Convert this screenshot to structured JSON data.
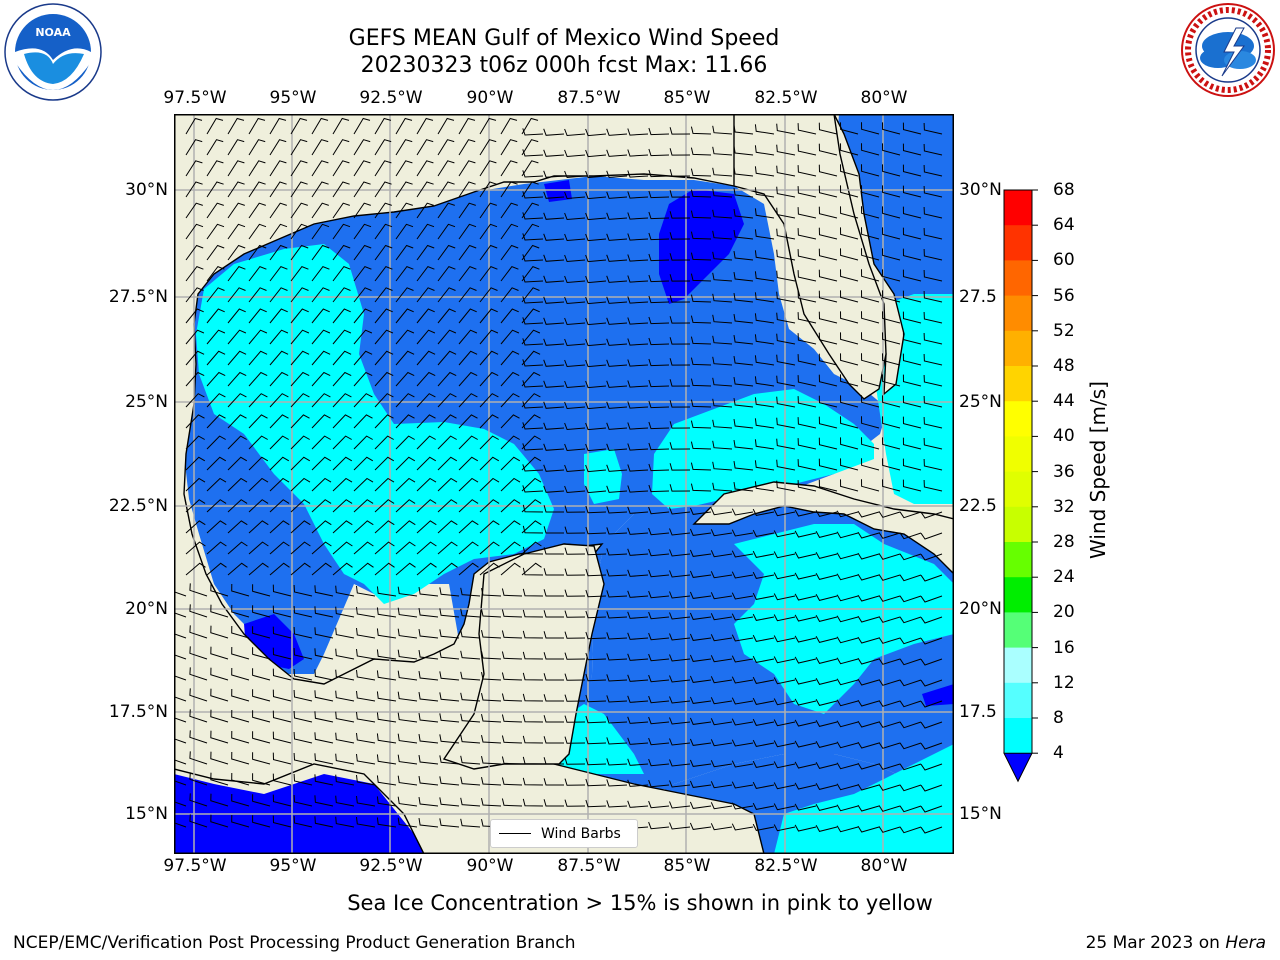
{
  "title_line1": "GEFS MEAN Gulf of Mexico Wind Speed",
  "title_line2": "20230323 t06z 000h fcst   Max: 11.66",
  "longitude_labels": [
    "97.5°W",
    "95°W",
    "92.5°W",
    "90°W",
    "87.5°W",
    "85°W",
    "82.5°W",
    "80°W"
  ],
  "latitude_labels_left": [
    "30°N",
    "27.5°N",
    "25°N",
    "22.5°N",
    "20°N",
    "17.5°N",
    "15°N"
  ],
  "latitude_labels_right": [
    "30°N",
    "27.5",
    "25°N",
    "22.5",
    "20°N",
    "17.5",
    "15°N"
  ],
  "legend_label": "Wind Barbs",
  "colorbar": {
    "title": "Wind Speed [m/s]",
    "ticks": [
      "68",
      "64",
      "60",
      "56",
      "52",
      "48",
      "44",
      "40",
      "36",
      "32",
      "28",
      "24",
      "20",
      "16",
      "12",
      "8",
      "4"
    ],
    "colors": [
      "#ff0000",
      "#ff3300",
      "#ff6600",
      "#ff8c00",
      "#ffb000",
      "#ffd400",
      "#ffff00",
      "#f0ff00",
      "#e0ff00",
      "#c8ff00",
      "#66ff00",
      "#00ee00",
      "#55ff77",
      "#aaffff",
      "#55ffff",
      "#00ffff",
      "#0077ff"
    ],
    "extend_color": "#0000ff"
  },
  "map_colors": {
    "land": "#efefdc",
    "band_4_8": "#1e70f0",
    "band_8_12": "#00ffff",
    "band_below_4": "#0000ff",
    "grid": "#b0b0b0"
  },
  "note": "Sea Ice Concentration > 15% is shown in pink to yellow",
  "footer_left": "NCEP/EMC/Verification Post Processing Product Generation Branch",
  "footer_date": "25 Mar 2023 on",
  "footer_host": "Hera",
  "logos": [
    "noaa-logo",
    "nws-logo"
  ]
}
